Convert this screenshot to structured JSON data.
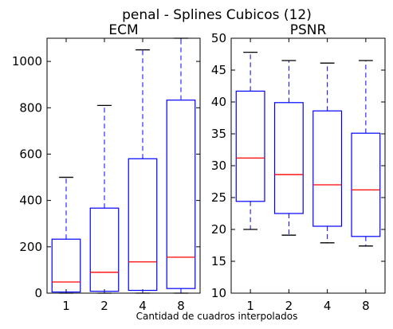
{
  "figure": {
    "suptitle": "penal - Splines Cubicos (12)",
    "xlabel": "Cantidad de cuadros interpolados"
  },
  "colors": {
    "box": "#0000ff",
    "median": "#ff0000",
    "cap": "#000000",
    "axes": "#000000"
  },
  "chart_data": [
    {
      "type": "boxplot",
      "title": "ECM",
      "categories": [
        "1",
        "2",
        "4",
        "8"
      ],
      "ylim": [
        0,
        1100
      ],
      "yticks": [
        0,
        200,
        400,
        600,
        800,
        1000
      ],
      "boxes": [
        {
          "whislo": 0,
          "q1": 5,
          "med": 48,
          "q3": 233,
          "whishi": 500
        },
        {
          "whislo": 0,
          "q1": 8,
          "med": 90,
          "q3": 367,
          "whishi": 810
        },
        {
          "whislo": 0,
          "q1": 12,
          "med": 135,
          "q3": 580,
          "whishi": 1050
        },
        {
          "whislo": 0,
          "q1": 20,
          "med": 155,
          "q3": 833,
          "whishi": 1100
        }
      ]
    },
    {
      "type": "boxplot",
      "title": "PSNR",
      "categories": [
        "1",
        "2",
        "4",
        "8"
      ],
      "ylim": [
        10,
        50
      ],
      "yticks": [
        10,
        15,
        20,
        25,
        30,
        35,
        40,
        45,
        50
      ],
      "boxes": [
        {
          "whislo": 20,
          "q1": 24.4,
          "med": 31.2,
          "q3": 41.7,
          "whishi": 47.8
        },
        {
          "whislo": 19.1,
          "q1": 22.5,
          "med": 28.6,
          "q3": 39.9,
          "whishi": 46.5
        },
        {
          "whislo": 17.9,
          "q1": 20.5,
          "med": 27.0,
          "q3": 38.6,
          "whishi": 46.1
        },
        {
          "whislo": 17.4,
          "q1": 18.9,
          "med": 26.2,
          "q3": 35.1,
          "whishi": 46.5
        }
      ]
    }
  ]
}
